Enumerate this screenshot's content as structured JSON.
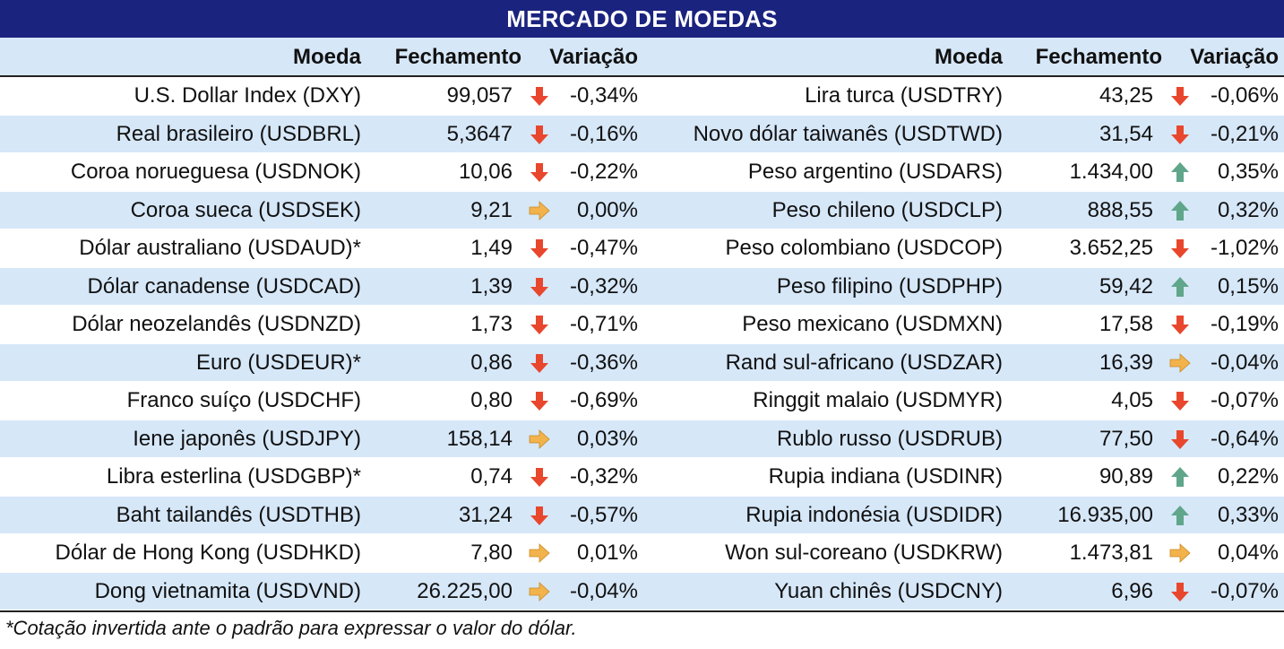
{
  "title": "MERCADO DE MOEDAS",
  "headers": {
    "moeda": "Moeda",
    "fechamento": "Fechamento",
    "variacao": "Variação"
  },
  "colors": {
    "title_bg": "#1a237e",
    "row_alt": "#d6e7f8",
    "down": "#e8472d",
    "up": "#5fa68a",
    "flat": "#f2b24c"
  },
  "left": [
    {
      "moeda": "U.S. Dollar Index (DXY)",
      "fechamento": "99,057",
      "direction": "down",
      "variacao": "-0,34%"
    },
    {
      "moeda": "Real brasileiro (USDBRL)",
      "fechamento": "5,3647",
      "direction": "down",
      "variacao": "-0,16%"
    },
    {
      "moeda": "Coroa norueguesa (USDNOK)",
      "fechamento": "10,06",
      "direction": "down",
      "variacao": "-0,22%"
    },
    {
      "moeda": "Coroa sueca (USDSEK)",
      "fechamento": "9,21",
      "direction": "flat",
      "variacao": "0,00%"
    },
    {
      "moeda": "Dólar australiano (USDAUD)*",
      "fechamento": "1,49",
      "direction": "down",
      "variacao": "-0,47%"
    },
    {
      "moeda": "Dólar canadense (USDCAD)",
      "fechamento": "1,39",
      "direction": "down",
      "variacao": "-0,32%"
    },
    {
      "moeda": "Dólar neozelandês (USDNZD)",
      "fechamento": "1,73",
      "direction": "down",
      "variacao": "-0,71%"
    },
    {
      "moeda": "Euro (USDEUR)*",
      "fechamento": "0,86",
      "direction": "down",
      "variacao": "-0,36%"
    },
    {
      "moeda": "Franco suíço (USDCHF)",
      "fechamento": "0,80",
      "direction": "down",
      "variacao": "-0,69%"
    },
    {
      "moeda": "Iene japonês (USDJPY)",
      "fechamento": "158,14",
      "direction": "flat",
      "variacao": "0,03%"
    },
    {
      "moeda": "Libra esterlina (USDGBP)*",
      "fechamento": "0,74",
      "direction": "down",
      "variacao": "-0,32%"
    },
    {
      "moeda": "Baht tailandês (USDTHB)",
      "fechamento": "31,24",
      "direction": "down",
      "variacao": "-0,57%"
    },
    {
      "moeda": "Dólar de Hong Kong (USDHKD)",
      "fechamento": "7,80",
      "direction": "flat",
      "variacao": "0,01%"
    },
    {
      "moeda": "Dong vietnamita (USDVND)",
      "fechamento": "26.225,00",
      "direction": "flat",
      "variacao": "-0,04%"
    }
  ],
  "right": [
    {
      "moeda": "Lira turca (USDTRY)",
      "fechamento": "43,25",
      "direction": "down",
      "variacao": "-0,06%"
    },
    {
      "moeda": "Novo dólar taiwanês (USDTWD)",
      "fechamento": "31,54",
      "direction": "down",
      "variacao": "-0,21%"
    },
    {
      "moeda": "Peso argentino (USDARS)",
      "fechamento": "1.434,00",
      "direction": "up",
      "variacao": "0,35%"
    },
    {
      "moeda": "Peso chileno (USDCLP)",
      "fechamento": "888,55",
      "direction": "up",
      "variacao": "0,32%"
    },
    {
      "moeda": "Peso colombiano (USDCOP)",
      "fechamento": "3.652,25",
      "direction": "down",
      "variacao": "-1,02%"
    },
    {
      "moeda": "Peso filipino (USDPHP)",
      "fechamento": "59,42",
      "direction": "up",
      "variacao": "0,15%"
    },
    {
      "moeda": "Peso mexicano (USDMXN)",
      "fechamento": "17,58",
      "direction": "down",
      "variacao": "-0,19%"
    },
    {
      "moeda": "Rand sul-africano (USDZAR)",
      "fechamento": "16,39",
      "direction": "flat",
      "variacao": "-0,04%"
    },
    {
      "moeda": "Ringgit malaio (USDMYR)",
      "fechamento": "4,05",
      "direction": "down",
      "variacao": "-0,07%"
    },
    {
      "moeda": "Rublo russo (USDRUB)",
      "fechamento": "77,50",
      "direction": "down",
      "variacao": "-0,64%"
    },
    {
      "moeda": "Rupia indiana (USDINR)",
      "fechamento": "90,89",
      "direction": "up",
      "variacao": "0,22%"
    },
    {
      "moeda": "Rupia indonésia (USDIDR)",
      "fechamento": "16.935,00",
      "direction": "up",
      "variacao": "0,33%"
    },
    {
      "moeda": "Won sul-coreano (USDKRW)",
      "fechamento": "1.473,81",
      "direction": "flat",
      "variacao": "0,04%"
    },
    {
      "moeda": "Yuan chinês (USDCNY)",
      "fechamento": "6,96",
      "direction": "down",
      "variacao": "-0,07%"
    }
  ],
  "footnote": "*Cotação invertida ante o padrão para expressar o valor do dólar."
}
